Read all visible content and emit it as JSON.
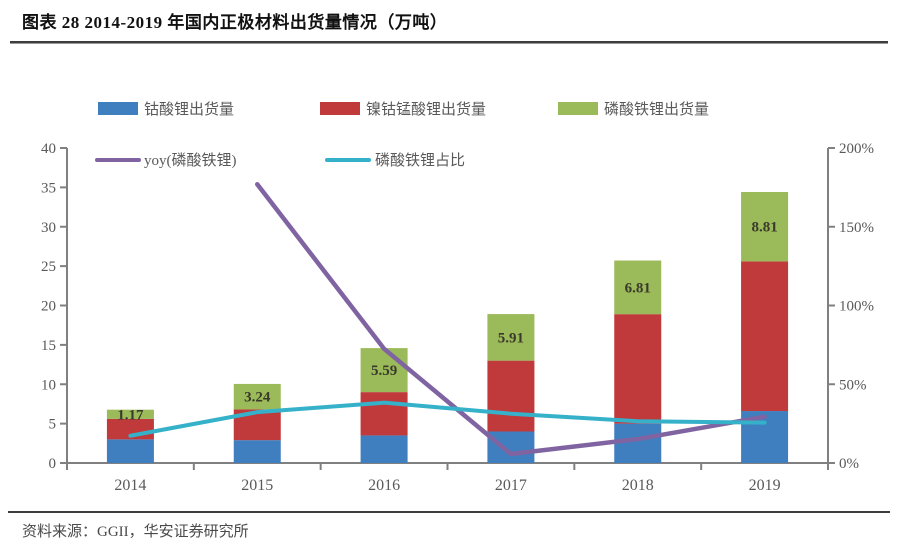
{
  "header": {
    "title": "图表 28 2014-2019 年国内正极材料出货量情况（万吨）"
  },
  "footer": {
    "source": "资料来源：GGII，华安证券研究所"
  },
  "chart_data": {
    "type": "bar",
    "subtype": "stacked-bars-with-lines",
    "unit": "万吨",
    "categories": [
      "2014",
      "2015",
      "2016",
      "2017",
      "2018",
      "2019"
    ],
    "bar_series": [
      {
        "name": "钴酸锂出货量",
        "color": "#3f7fbf",
        "values": [
          3.0,
          2.9,
          3.5,
          4.0,
          5.0,
          6.6
        ]
      },
      {
        "name": "镍钴锰酸锂出货量",
        "color": "#c0393b",
        "values": [
          2.6,
          3.9,
          5.5,
          9.0,
          13.9,
          19.0
        ]
      },
      {
        "name": "磷酸铁锂出货量",
        "color": "#9bba59",
        "values": [
          1.17,
          3.24,
          5.59,
          5.91,
          6.81,
          8.81
        ],
        "data_labels": [
          "1.17",
          "3.24",
          "5.59",
          "5.91",
          "6.81",
          "8.81"
        ]
      }
    ],
    "line_series": [
      {
        "name": "yoy(磷酸铁锂)",
        "color": "#8064a2",
        "axis": "right",
        "values": [
          null,
          177,
          72.5,
          5.7,
          15.2,
          29.4
        ]
      },
      {
        "name": "磷酸铁锂占比",
        "color": "#35b1c9",
        "axis": "right",
        "values": [
          17.3,
          32.3,
          38.3,
          31.3,
          26.5,
          25.6
        ]
      }
    ],
    "left_axis": {
      "min": 0,
      "max": 40,
      "step": 5,
      "tick_labels": [
        "0",
        "5",
        "10",
        "15",
        "20",
        "25",
        "30",
        "35",
        "40"
      ]
    },
    "right_axis": {
      "min": 0,
      "max": 200,
      "step": 50,
      "tick_labels": [
        "0%",
        "50%",
        "100%",
        "150%",
        "200%"
      ]
    },
    "legend_position": "top",
    "grid": "off"
  }
}
